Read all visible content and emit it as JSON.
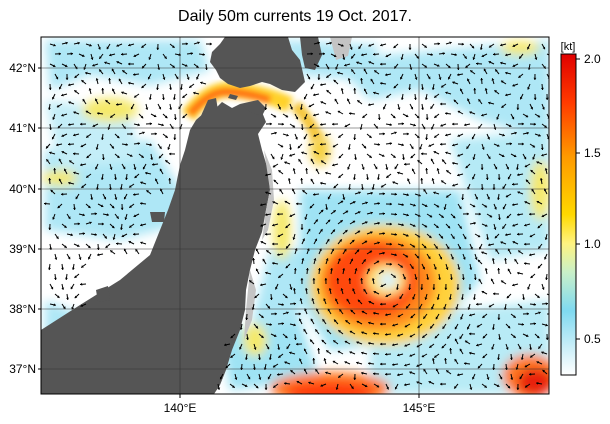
{
  "title": "Daily 50m currents 19 Oct. 2017.",
  "map": {
    "lat_labels": [
      "42°N",
      "41°N",
      "40°N",
      "39°N",
      "38°N",
      "37°N"
    ],
    "lon_labels": [
      "140°E",
      "145°E"
    ],
    "lat_values": [
      42,
      41,
      40,
      39,
      38,
      37
    ],
    "lon_values": [
      140,
      145
    ],
    "extent": {
      "lon_min": 136.9,
      "lon_max": 148.0,
      "lat_min": 36.55,
      "lat_max": 42.45
    }
  },
  "colorbar": {
    "unit_label": "[kt]",
    "tick_labels": [
      "2.0",
      "1.5",
      "1.0",
      "0.5"
    ],
    "tick_values": [
      2.0,
      1.5,
      1.0,
      0.5
    ],
    "range": [
      0.3,
      2.0
    ],
    "stops": [
      {
        "v": 0.3,
        "c": "#ffffff"
      },
      {
        "v": 0.45,
        "c": "#c8eef8"
      },
      {
        "v": 0.65,
        "c": "#7fd9f0"
      },
      {
        "v": 0.85,
        "c": "#c9f0c8"
      },
      {
        "v": 1.0,
        "c": "#fff380"
      },
      {
        "v": 1.15,
        "c": "#ffd800"
      },
      {
        "v": 1.45,
        "c": "#ff9a00"
      },
      {
        "v": 1.75,
        "c": "#ff3a00"
      },
      {
        "v": 2.0,
        "c": "#e00000"
      }
    ]
  },
  "colors": {
    "land": "#555555",
    "shelf": "#bdbdbd",
    "ocean": "#ffffff",
    "arrow": "#000000",
    "grid": "#222222"
  }
}
